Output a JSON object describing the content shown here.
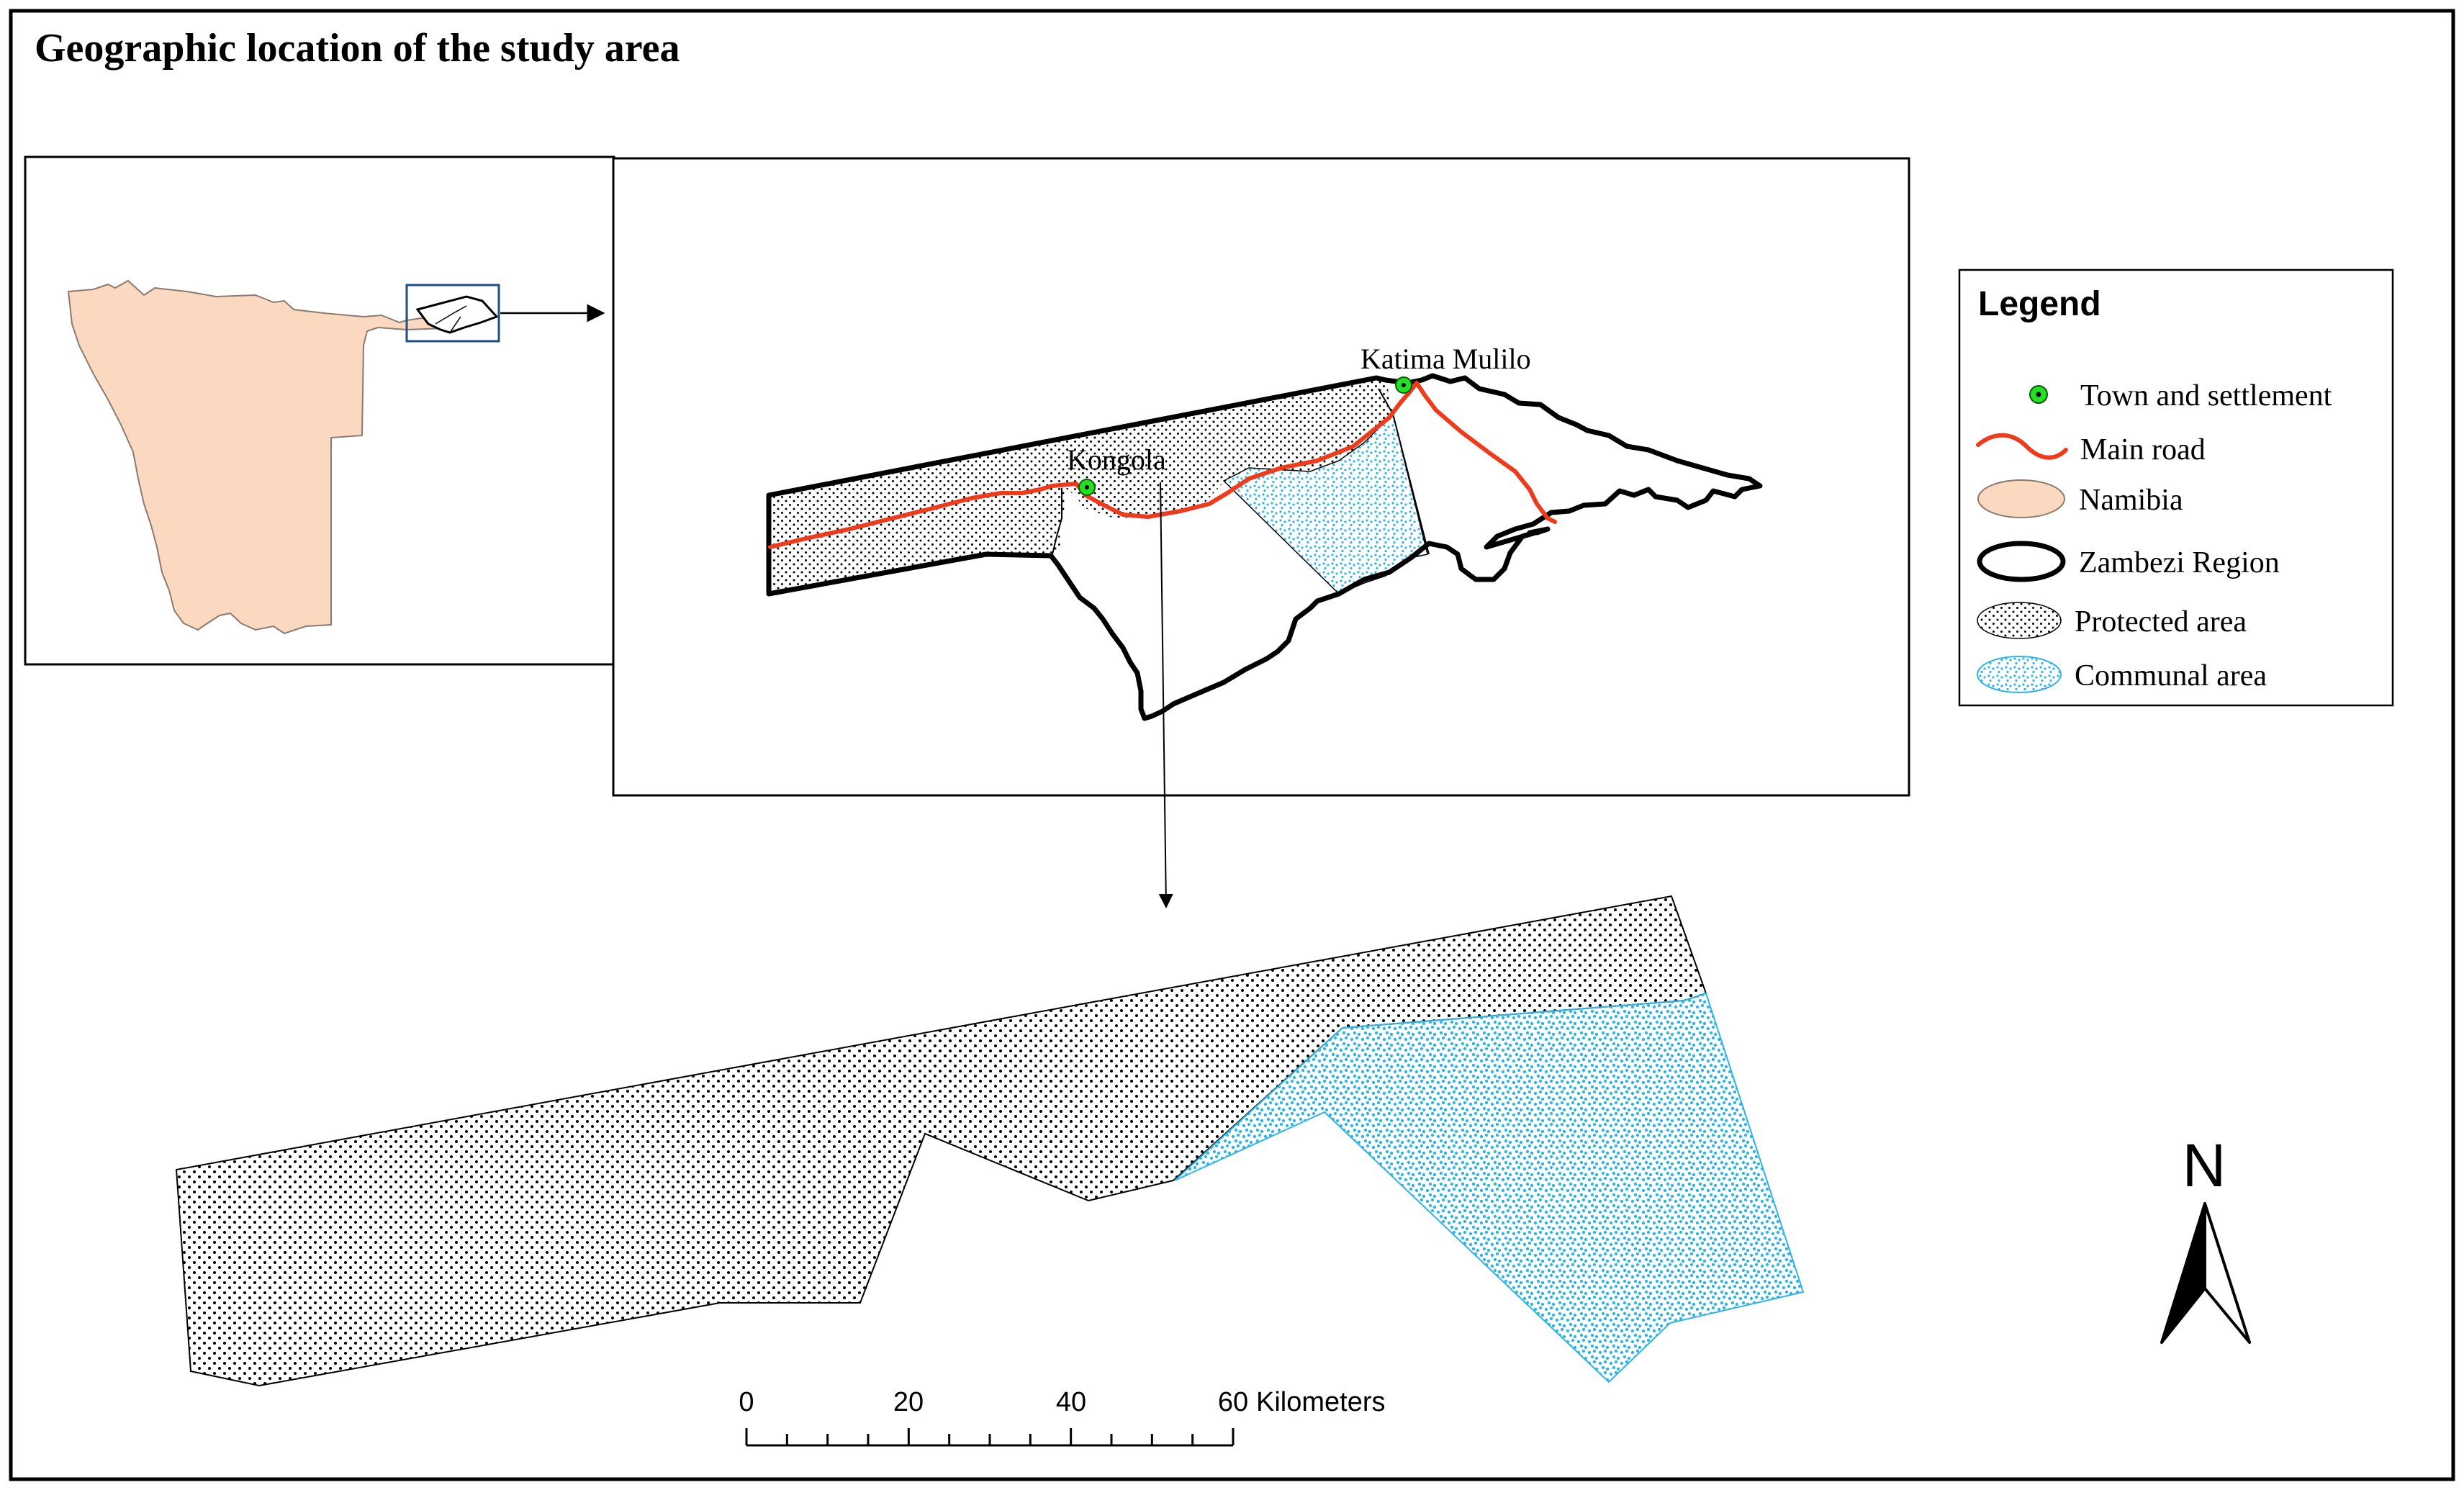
{
  "map": {
    "title": "Geographic location of the study area",
    "towns": [
      {
        "name": "Katima Mulilo"
      },
      {
        "name": "Kongola"
      }
    ],
    "legend": {
      "title": "Legend",
      "items": [
        {
          "label": "Town and settlement",
          "symbol": "green-dot-icon"
        },
        {
          "label": "Main road",
          "symbol": "red-line-icon"
        },
        {
          "label": "Namibia",
          "symbol": "tan-ellipse-icon"
        },
        {
          "label": "Zambezi Region",
          "symbol": "black-outline-ellipse-icon"
        },
        {
          "label": "Protected area",
          "symbol": "dotted-ellipse-icon"
        },
        {
          "label": "Communal area",
          "symbol": "blue-dotted-ellipse-icon"
        }
      ]
    },
    "scale_bar": {
      "ticks": [
        "0",
        "20",
        "40",
        "60"
      ],
      "unit": "Kilometers"
    },
    "north_arrow": {
      "label": "N"
    },
    "colors": {
      "namibia_fill": "#fbd9c0",
      "road": "#ee3b1b",
      "town": "#22e022",
      "communal": "#2fb4e6",
      "outline": "#000000"
    }
  }
}
